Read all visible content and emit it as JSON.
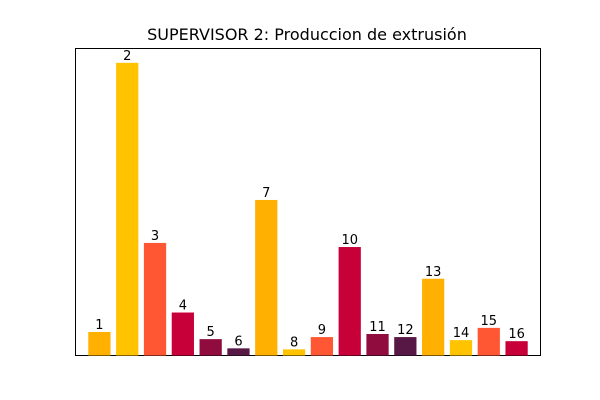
{
  "chart_data": {
    "type": "bar",
    "title": "SUPERVISOR 2: Produccion de extrusión",
    "xlabel": "",
    "ylabel": "",
    "x_ticks": "none",
    "y_ticks": "none",
    "categories": [
      "1",
      "2",
      "3",
      "4",
      "5",
      "6",
      "7",
      "8",
      "9",
      "10",
      "11",
      "12",
      "13",
      "14",
      "15",
      "16"
    ],
    "values": [
      2.3,
      28.6,
      11.0,
      4.2,
      1.6,
      0.7,
      15.2,
      0.6,
      1.8,
      10.6,
      2.1,
      1.8,
      7.5,
      1.5,
      2.7,
      1.4
    ],
    "data_labels": [
      "1",
      "2",
      "3",
      "4",
      "5",
      "6",
      "7",
      "8",
      "9",
      "10",
      "11",
      "12",
      "13",
      "14",
      "15",
      "16"
    ],
    "colors": [
      "#ffb000",
      "#ffc300",
      "#ff5733",
      "#c70039",
      "#900c3f",
      "#581845",
      "#ffb000",
      "#ffc300",
      "#ff5733",
      "#c70039",
      "#900c3f",
      "#581845",
      "#ffb000",
      "#ffc300",
      "#ff5733",
      "#c70039"
    ],
    "ylim": [
      0,
      30
    ]
  }
}
